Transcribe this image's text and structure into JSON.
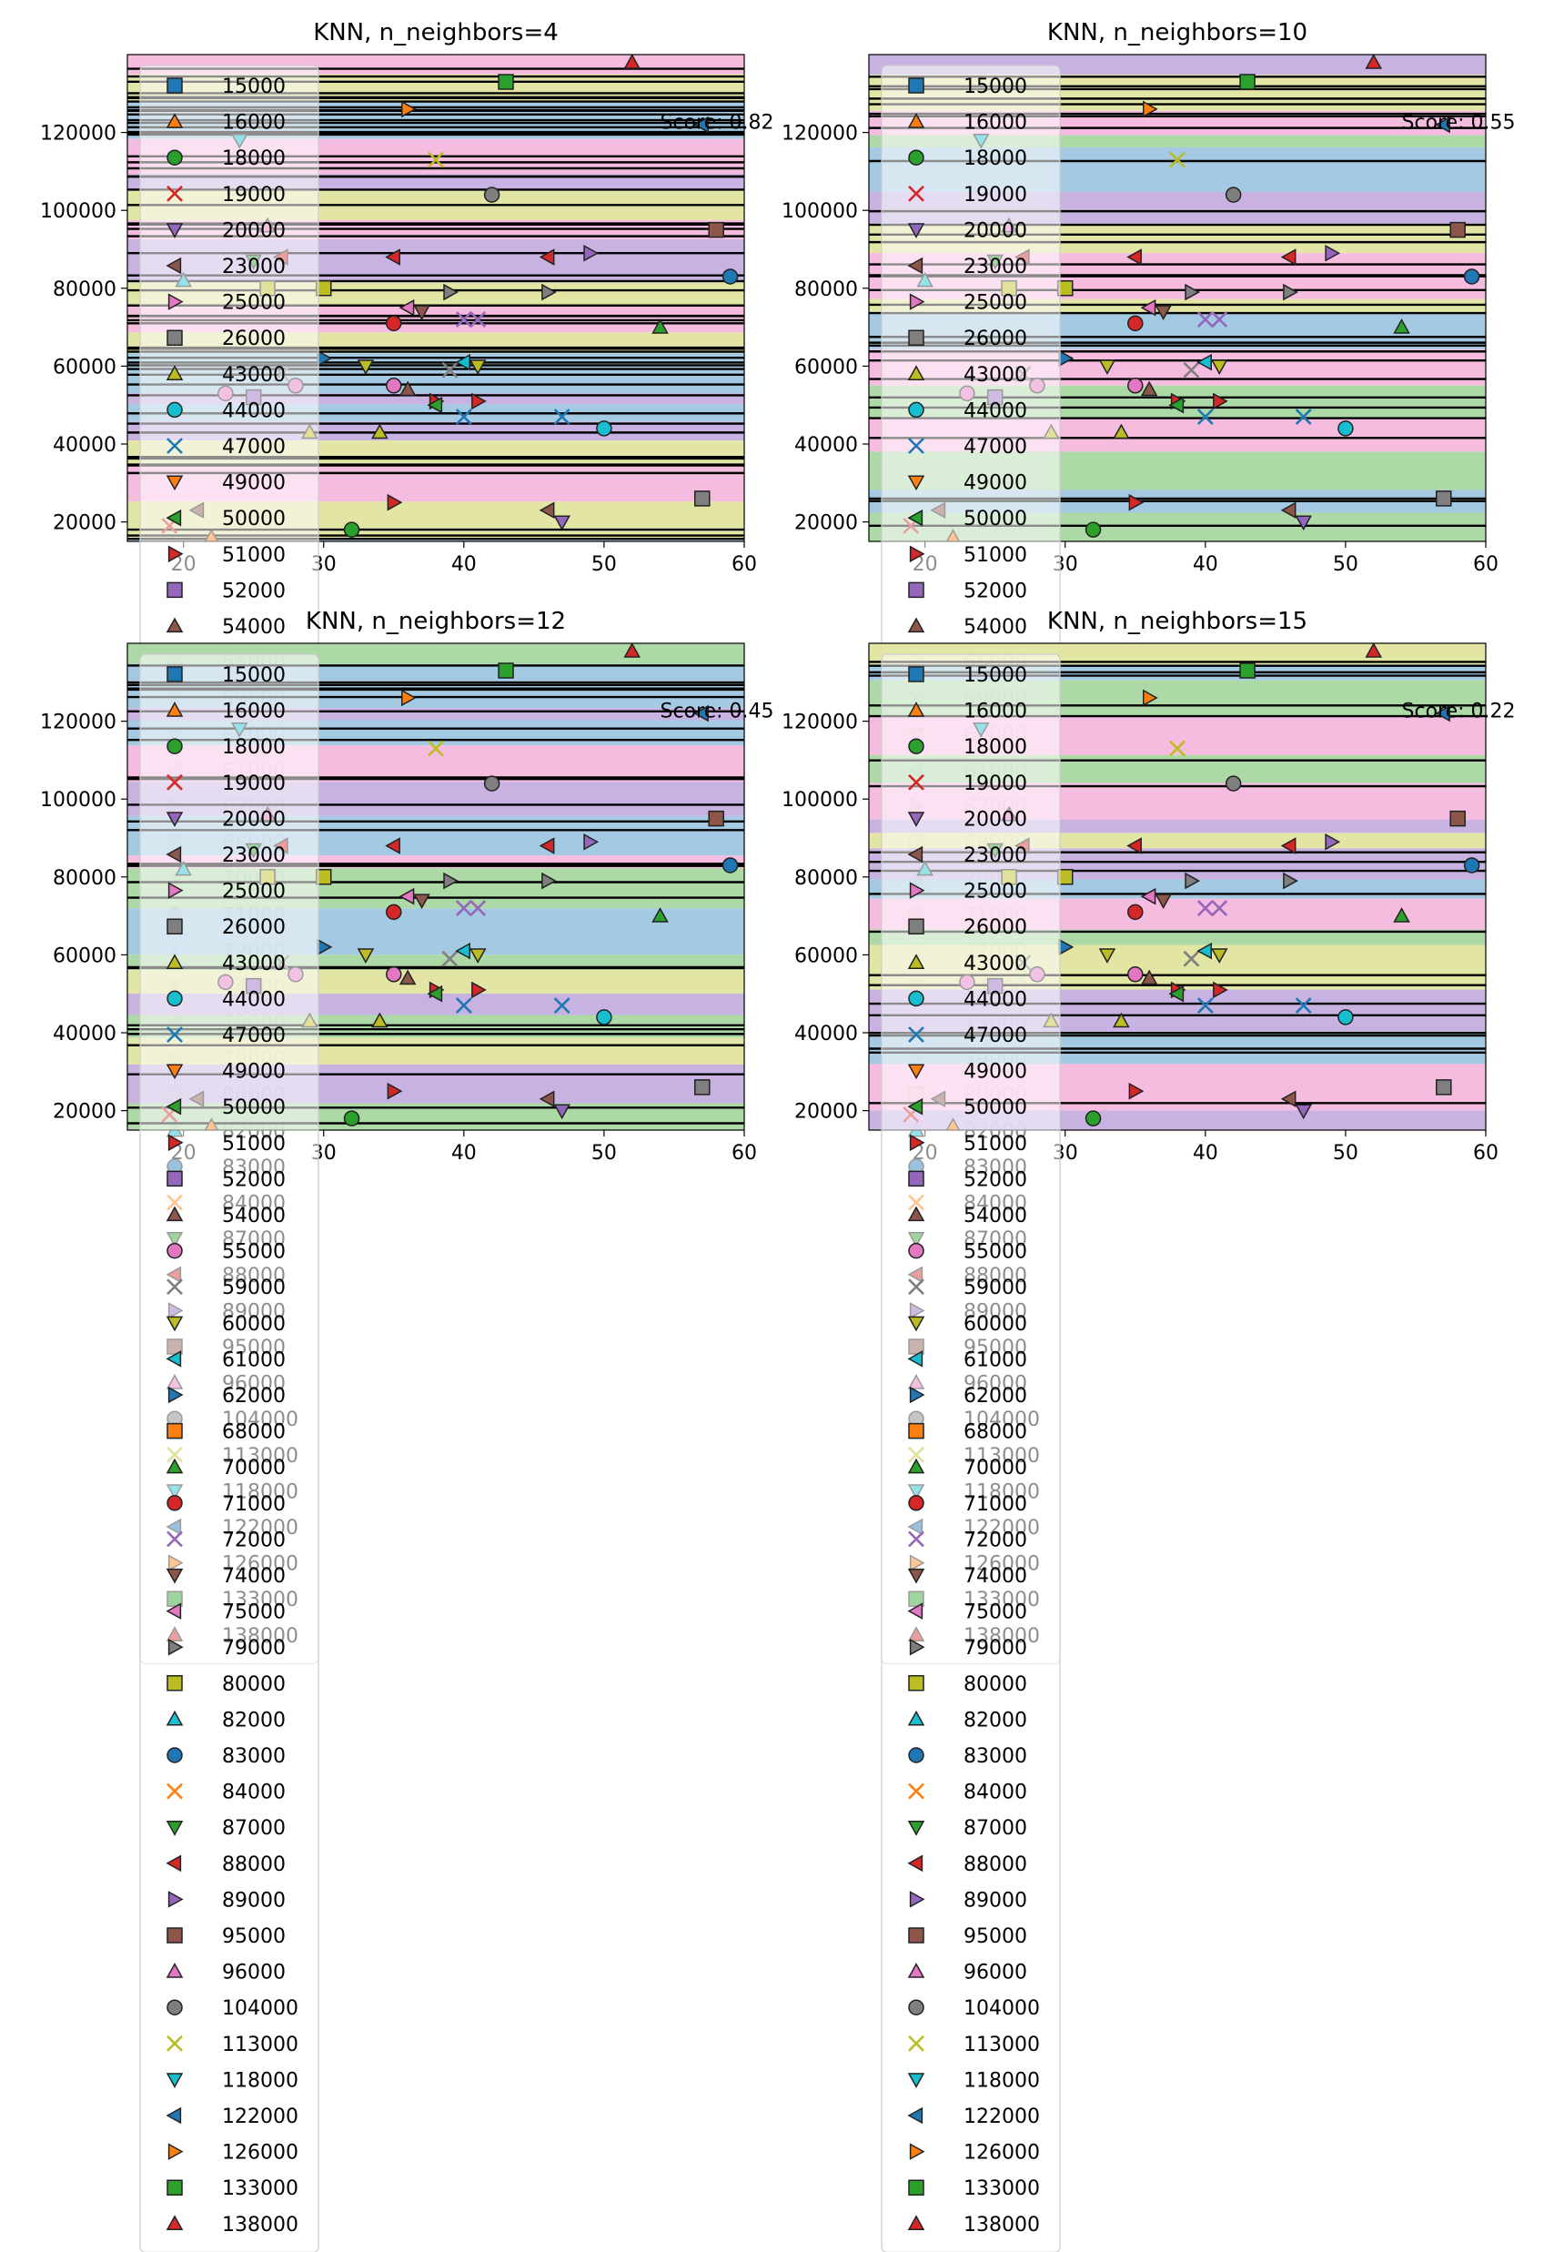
{
  "chart_data": [
    {
      "type": "scatter",
      "title": "KNN, n_neighbors=4",
      "score_label": "Score: 0.82",
      "xlim": [
        16,
        60
      ],
      "ylim": [
        15000,
        140000
      ],
      "xticks": [
        "20",
        "30",
        "40",
        "50",
        "60"
      ],
      "yticks": [
        "20000",
        "40000",
        "60000",
        "80000",
        "100000",
        "120000"
      ],
      "legend": "upper-left, overflowing below the axes",
      "background": "decision-region bands (pink, purple, green, yellow, blue) with dense black horizontal boundary lines"
    },
    {
      "type": "scatter",
      "title": "KNN, n_neighbors=10",
      "score_label": "Score: 0.55",
      "xlim": [
        16,
        60
      ],
      "ylim": [
        15000,
        140000
      ],
      "xticks": [
        "20",
        "30",
        "40",
        "50",
        "60"
      ],
      "yticks": [
        "20000",
        "40000",
        "60000",
        "80000",
        "100000",
        "120000"
      ],
      "legend": "upper-left, overflowing below the axes",
      "background": "decision-region bands with black horizontal boundary lines"
    },
    {
      "type": "scatter",
      "title": "KNN, n_neighbors=12",
      "score_label": "Score: 0.45",
      "xlim": [
        16,
        60
      ],
      "ylim": [
        15000,
        140000
      ],
      "xticks": [
        "20",
        "30",
        "40",
        "50",
        "60"
      ],
      "yticks": [
        "20000",
        "40000",
        "60000",
        "80000",
        "100000",
        "120000"
      ],
      "legend": "upper-left, overflowing below the axes",
      "background": "decision-region bands with black horizontal boundary lines"
    },
    {
      "type": "scatter",
      "title": "KNN, n_neighbors=15",
      "score_label": "Score: 0.22",
      "xlim": [
        16,
        60
      ],
      "ylim": [
        15000,
        140000
      ],
      "xticks": [
        "20",
        "30",
        "40",
        "50",
        "60"
      ],
      "yticks": [
        "20000",
        "40000",
        "60000",
        "80000",
        "100000",
        "120000"
      ],
      "legend": "upper-left, overflowing below the axes",
      "background": "decision-region bands with black horizontal boundary lines"
    }
  ],
  "classes": [
    {
      "label": "15000",
      "marker": "square",
      "color": "#1f77b4"
    },
    {
      "label": "16000",
      "marker": "triangle-up",
      "color": "#ff7f0e"
    },
    {
      "label": "18000",
      "marker": "circle",
      "color": "#2ca02c"
    },
    {
      "label": "19000",
      "marker": "x",
      "color": "#d62728"
    },
    {
      "label": "20000",
      "marker": "triangle-down",
      "color": "#9467bd"
    },
    {
      "label": "23000",
      "marker": "triangle-left",
      "color": "#8c564b"
    },
    {
      "label": "25000",
      "marker": "triangle-right",
      "color": "#e377c2"
    },
    {
      "label": "26000",
      "marker": "square",
      "color": "#7f7f7f"
    },
    {
      "label": "43000",
      "marker": "triangle-up",
      "color": "#bcbd22"
    },
    {
      "label": "44000",
      "marker": "circle",
      "color": "#17becf"
    },
    {
      "label": "47000",
      "marker": "x",
      "color": "#1f77b4"
    },
    {
      "label": "49000",
      "marker": "triangle-down",
      "color": "#ff7f0e"
    },
    {
      "label": "50000",
      "marker": "triangle-left",
      "color": "#2ca02c"
    },
    {
      "label": "51000",
      "marker": "triangle-right",
      "color": "#d62728"
    },
    {
      "label": "52000",
      "marker": "square",
      "color": "#9467bd"
    },
    {
      "label": "54000",
      "marker": "triangle-up",
      "color": "#8c564b"
    },
    {
      "label": "55000",
      "marker": "circle",
      "color": "#e377c2"
    },
    {
      "label": "59000",
      "marker": "x",
      "color": "#7f7f7f"
    },
    {
      "label": "60000",
      "marker": "triangle-down",
      "color": "#bcbd22"
    },
    {
      "label": "61000",
      "marker": "triangle-left",
      "color": "#17becf"
    },
    {
      "label": "62000",
      "marker": "triangle-right",
      "color": "#1f77b4"
    },
    {
      "label": "68000",
      "marker": "square",
      "color": "#ff7f0e"
    },
    {
      "label": "70000",
      "marker": "triangle-up",
      "color": "#2ca02c"
    },
    {
      "label": "71000",
      "marker": "circle",
      "color": "#d62728"
    },
    {
      "label": "72000",
      "marker": "x",
      "color": "#9467bd"
    },
    {
      "label": "74000",
      "marker": "triangle-down",
      "color": "#8c564b"
    },
    {
      "label": "75000",
      "marker": "triangle-left",
      "color": "#e377c2"
    },
    {
      "label": "79000",
      "marker": "triangle-right",
      "color": "#7f7f7f"
    },
    {
      "label": "80000",
      "marker": "square",
      "color": "#bcbd22"
    },
    {
      "label": "82000",
      "marker": "triangle-up",
      "color": "#17becf"
    },
    {
      "label": "83000",
      "marker": "circle",
      "color": "#1f77b4"
    },
    {
      "label": "84000",
      "marker": "x",
      "color": "#ff7f0e"
    },
    {
      "label": "87000",
      "marker": "triangle-down",
      "color": "#2ca02c"
    },
    {
      "label": "88000",
      "marker": "triangle-left",
      "color": "#d62728"
    },
    {
      "label": "89000",
      "marker": "triangle-right",
      "color": "#9467bd"
    },
    {
      "label": "95000",
      "marker": "square",
      "color": "#8c564b"
    },
    {
      "label": "96000",
      "marker": "triangle-up",
      "color": "#e377c2"
    },
    {
      "label": "104000",
      "marker": "circle",
      "color": "#7f7f7f"
    },
    {
      "label": "113000",
      "marker": "x",
      "color": "#bcbd22"
    },
    {
      "label": "118000",
      "marker": "triangle-down",
      "color": "#17becf"
    },
    {
      "label": "122000",
      "marker": "triangle-left",
      "color": "#1f77b4"
    },
    {
      "label": "126000",
      "marker": "triangle-right",
      "color": "#ff7f0e"
    },
    {
      "label": "133000",
      "marker": "square",
      "color": "#2ca02c"
    },
    {
      "label": "138000",
      "marker": "triangle-up",
      "color": "#d62728"
    }
  ],
  "points": [
    {
      "x": 19,
      "y": 19000,
      "c": "19000"
    },
    {
      "x": 20,
      "y": 82000,
      "c": "82000"
    },
    {
      "x": 21,
      "y": 23000,
      "c": "23000"
    },
    {
      "x": 22,
      "y": 16000,
      "c": "16000"
    },
    {
      "x": 23,
      "y": 53000,
      "c": "55000"
    },
    {
      "x": 24,
      "y": 118000,
      "c": "118000"
    },
    {
      "x": 25,
      "y": 87000,
      "c": "87000"
    },
    {
      "x": 25,
      "y": 52000,
      "c": "52000"
    },
    {
      "x": 26,
      "y": 80000,
      "c": "80000"
    },
    {
      "x": 26,
      "y": 96000,
      "c": "96000"
    },
    {
      "x": 27,
      "y": 58000,
      "c": "59000"
    },
    {
      "x": 27,
      "y": 88000,
      "c": "88000"
    },
    {
      "x": 28,
      "y": 55000,
      "c": "55000"
    },
    {
      "x": 29,
      "y": 43000,
      "c": "43000"
    },
    {
      "x": 30,
      "y": 80000,
      "c": "80000"
    },
    {
      "x": 30,
      "y": 62000,
      "c": "62000"
    },
    {
      "x": 32,
      "y": 18000,
      "c": "18000"
    },
    {
      "x": 33,
      "y": 60000,
      "c": "60000"
    },
    {
      "x": 34,
      "y": 43000,
      "c": "43000"
    },
    {
      "x": 35,
      "y": 71000,
      "c": "71000"
    },
    {
      "x": 35,
      "y": 55000,
      "c": "55000"
    },
    {
      "x": 35,
      "y": 88000,
      "c": "88000"
    },
    {
      "x": 35,
      "y": 25000,
      "c": "51000"
    },
    {
      "x": 36,
      "y": 54000,
      "c": "54000"
    },
    {
      "x": 36,
      "y": 126000,
      "c": "126000"
    },
    {
      "x": 36,
      "y": 75000,
      "c": "75000"
    },
    {
      "x": 37,
      "y": 74000,
      "c": "74000"
    },
    {
      "x": 38,
      "y": 113000,
      "c": "113000"
    },
    {
      "x": 38,
      "y": 51000,
      "c": "51000"
    },
    {
      "x": 38,
      "y": 50000,
      "c": "50000"
    },
    {
      "x": 39,
      "y": 79000,
      "c": "79000"
    },
    {
      "x": 39,
      "y": 59000,
      "c": "59000"
    },
    {
      "x": 40,
      "y": 47000,
      "c": "47000"
    },
    {
      "x": 40,
      "y": 72000,
      "c": "72000"
    },
    {
      "x": 40,
      "y": 61000,
      "c": "61000"
    },
    {
      "x": 41,
      "y": 72000,
      "c": "72000"
    },
    {
      "x": 41,
      "y": 60000,
      "c": "60000"
    },
    {
      "x": 41,
      "y": 51000,
      "c": "51000"
    },
    {
      "x": 42,
      "y": 104000,
      "c": "104000"
    },
    {
      "x": 43,
      "y": 133000,
      "c": "133000"
    },
    {
      "x": 46,
      "y": 88000,
      "c": "88000"
    },
    {
      "x": 46,
      "y": 79000,
      "c": "79000"
    },
    {
      "x": 46,
      "y": 23000,
      "c": "23000"
    },
    {
      "x": 47,
      "y": 47000,
      "c": "47000"
    },
    {
      "x": 47,
      "y": 20000,
      "c": "20000"
    },
    {
      "x": 49,
      "y": 89000,
      "c": "89000"
    },
    {
      "x": 50,
      "y": 44000,
      "c": "44000"
    },
    {
      "x": 52,
      "y": 138000,
      "c": "138000"
    },
    {
      "x": 54,
      "y": 70000,
      "c": "70000"
    },
    {
      "x": 57,
      "y": 26000,
      "c": "26000"
    },
    {
      "x": 57,
      "y": 122000,
      "c": "122000"
    },
    {
      "x": 58,
      "y": 95000,
      "c": "95000"
    },
    {
      "x": 59,
      "y": 83000,
      "c": "83000"
    }
  ],
  "band_colors": [
    "#f6b8de",
    "#c5aee0",
    "#a9d7a1",
    "#e2e4a0",
    "#9fc7e2"
  ],
  "boundary_line_counts": [
    60,
    32,
    28,
    22
  ]
}
